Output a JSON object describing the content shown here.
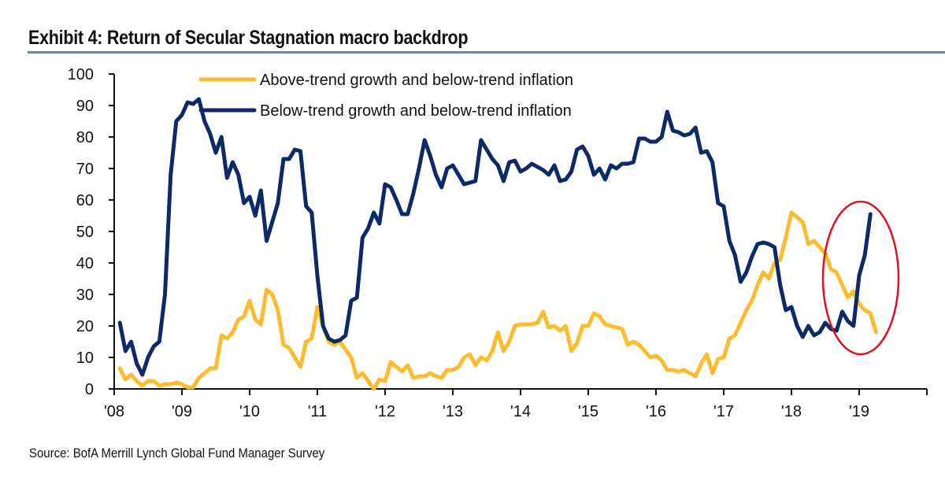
{
  "title": "Exhibit 4: Return of Secular Stagnation macro backdrop",
  "source": "Source: BofA Merrill Lynch Global Fund Manager Survey",
  "colors": {
    "gold": "#fbbd2e",
    "navy": "#0b2a66",
    "highlight": "#e0101e",
    "rule": "#6b86ac",
    "axis": "#111111"
  },
  "chart_data": {
    "type": "line",
    "title": "Exhibit 4: Return of Secular Stagnation macro backdrop",
    "xlabel": "",
    "ylabel": "",
    "ylim": [
      0,
      100
    ],
    "yticks": [
      0,
      10,
      20,
      30,
      40,
      50,
      60,
      70,
      80,
      90,
      100
    ],
    "ytick_labels": [
      "0",
      "10",
      "20",
      "30",
      "40",
      "50",
      "60",
      "70",
      "80",
      "90",
      "100"
    ],
    "xlim_years": [
      2008,
      2020
    ],
    "xtick_labels": [
      "'08",
      "'09",
      "'10",
      "'11",
      "'12",
      "'13",
      "'14",
      "'15",
      "'16",
      "'17",
      "'18",
      "'19",
      ""
    ],
    "x_start": "2008-02",
    "x_frequency": "monthly",
    "grid": false,
    "legend_position": "top-center",
    "annotation": "red ellipse highlighting late-2018 to early-2019 surge in below-trend growth and below-trend inflation",
    "annotation_range": [
      "2018-07",
      "2019-07"
    ],
    "series": [
      {
        "name": "Above-trend growth and below-trend inflation",
        "color": "#fbbd2e",
        "values": [
          6.5,
          3,
          4.5,
          2.5,
          1,
          2.5,
          2.5,
          1,
          1.5,
          1.5,
          2,
          1.5,
          0.5,
          0.5,
          3.5,
          5,
          6.5,
          6.5,
          17,
          16,
          18,
          22,
          23,
          28,
          22,
          20.5,
          31.5,
          30,
          25,
          14,
          13,
          10,
          7,
          15,
          16,
          26,
          20,
          15,
          14,
          15,
          12.5,
          10,
          3.5,
          5,
          2.5,
          0,
          3,
          2.5,
          8.5,
          7,
          5.5,
          7.5,
          3.5,
          4,
          4,
          5,
          4,
          3.5,
          6,
          6,
          7,
          10,
          11,
          7.5,
          10,
          9,
          12,
          18,
          12,
          15,
          20,
          20.5,
          20.5,
          20.5,
          21,
          24.5,
          19.5,
          20,
          18.5,
          20,
          12,
          14.5,
          20,
          20,
          24,
          23,
          20.5,
          20,
          19.5,
          19,
          14,
          15,
          14,
          12,
          10,
          10.5,
          9,
          6,
          6,
          5.5,
          6,
          5,
          4,
          8,
          11,
          5,
          9.5,
          10,
          16,
          17,
          21,
          25,
          28,
          33,
          37,
          35,
          40,
          41,
          48,
          56,
          54.5,
          53,
          46,
          47,
          45,
          43,
          38,
          37,
          33,
          29,
          31,
          27,
          25,
          24,
          18
        ]
      },
      {
        "name": "Below-trend growth and below-trend inflation",
        "color": "#0b2a66",
        "values": [
          21,
          12,
          15,
          8,
          4.5,
          10,
          13.5,
          15,
          30,
          68,
          85,
          87,
          91,
          90.5,
          92,
          85,
          81,
          75,
          80,
          67,
          72,
          68,
          59,
          61,
          55,
          63,
          47,
          53,
          59,
          73,
          73,
          76,
          75.5,
          58,
          56,
          36,
          20,
          16,
          15,
          15.5,
          17,
          28,
          29,
          48,
          51,
          56,
          52.5,
          65,
          64,
          60,
          55.5,
          55.5,
          62,
          70,
          79,
          74,
          68,
          64,
          70,
          71,
          68,
          65,
          65.5,
          66,
          79,
          76,
          73,
          71,
          66,
          72,
          72.5,
          69,
          70,
          71.5,
          70.5,
          69.5,
          68,
          71,
          66,
          66.5,
          69,
          76,
          77,
          74,
          68,
          70,
          66.5,
          71,
          70,
          71.5,
          71.5,
          72,
          79.5,
          79.5,
          78.5,
          78.5,
          80,
          88,
          82,
          81.5,
          80.5,
          81,
          83,
          75,
          75.5,
          72,
          59,
          58,
          47,
          42.5,
          34,
          37,
          42,
          46,
          46.5,
          46,
          45,
          33,
          25,
          26,
          20,
          16.5,
          20,
          17,
          18,
          21,
          19,
          18.5,
          24.5,
          21.5,
          20,
          36,
          42.5,
          55.5
        ]
      }
    ]
  }
}
